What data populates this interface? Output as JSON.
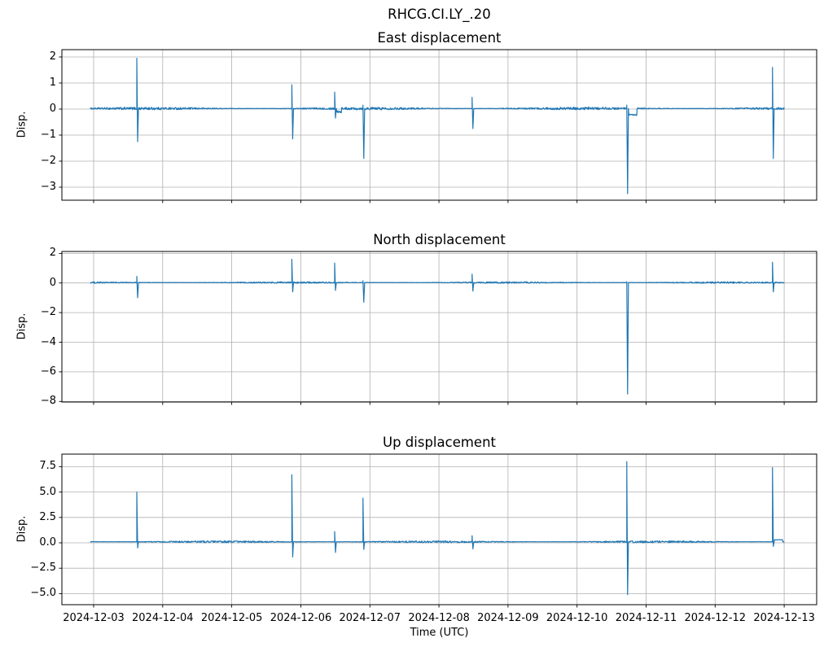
{
  "figure": {
    "suptitle": "RHCG.CI.LY_.20",
    "background": "#ffffff",
    "line_color": "#1f77b4",
    "grid_color": "#b0b0b0",
    "spine_color": "#000000",
    "text_color": "#000000"
  },
  "x_axis": {
    "label": "Time (UTC)",
    "tick_labels": [
      "2024-12-03",
      "2024-12-04",
      "2024-12-05",
      "2024-12-06",
      "2024-12-07",
      "2024-12-08",
      "2024-12-09",
      "2024-12-10",
      "2024-12-11",
      "2024-12-12",
      "2024-12-13"
    ],
    "tick_day_offsets": [
      0,
      1,
      2,
      3,
      4,
      5,
      6,
      7,
      8,
      9,
      10
    ],
    "xlim_days": [
      -0.46,
      10.47
    ],
    "data_start_day": -0.05,
    "data_end_day": 10.0
  },
  "chart_data": [
    {
      "type": "line",
      "title": "East displacement",
      "ylabel": "Disp.",
      "grid": true,
      "legend": "none",
      "ylim": [
        -3.5,
        2.28
      ],
      "ytick_values": [
        2,
        1,
        0,
        -1,
        -2,
        -3
      ],
      "ytick_labels": [
        "2",
        "1",
        "0",
        "−1",
        "−2",
        "−3"
      ],
      "baseline": 0.02,
      "noise_amp": 0.05,
      "spikes": [
        {
          "time": "2024-12-03 15:00",
          "t": 0.625,
          "up": 1.95,
          "down": -1.25
        },
        {
          "time": "2024-12-05 20:50",
          "t": 2.87,
          "up": 0.93,
          "down": -1.15
        },
        {
          "time": "2024-12-06 11:45",
          "t": 3.49,
          "up": 0.65,
          "down": -0.35,
          "after_value": -0.12,
          "after_days": 0.1
        },
        {
          "time": "2024-12-06 21:35",
          "t": 3.9,
          "up": 0.15,
          "down": -1.9
        },
        {
          "time": "2024-12-08 11:30",
          "t": 5.48,
          "up": 0.45,
          "down": -0.75
        },
        {
          "time": "2024-12-10 17:20",
          "t": 7.72,
          "up": 0.15,
          "down": -3.25,
          "after_value": -0.25,
          "after_days": 0.15
        },
        {
          "time": "2024-12-12 19:55",
          "t": 9.83,
          "up": 1.6,
          "down": -1.9
        }
      ]
    },
    {
      "type": "line",
      "title": "North displacement",
      "ylabel": "Disp.",
      "grid": true,
      "legend": "none",
      "ylim": [
        -8.04,
        2.13
      ],
      "ytick_values": [
        2,
        0,
        -2,
        -4,
        -6,
        -8
      ],
      "ytick_labels": [
        "2",
        "0",
        "−2",
        "−4",
        "−6",
        "−8"
      ],
      "baseline": 0.03,
      "noise_amp": 0.055,
      "spikes": [
        {
          "time": "2024-12-03 15:00",
          "t": 0.625,
          "up": 0.45,
          "down": -1.0
        },
        {
          "time": "2024-12-05 20:50",
          "t": 2.87,
          "up": 1.6,
          "down": -0.6
        },
        {
          "time": "2024-12-06 11:45",
          "t": 3.49,
          "up": 1.35,
          "down": -0.5
        },
        {
          "time": "2024-12-06 21:35",
          "t": 3.9,
          "up": 0.15,
          "down": -1.3
        },
        {
          "time": "2024-12-08 11:30",
          "t": 5.48,
          "up": 0.6,
          "down": -0.55
        },
        {
          "time": "2024-12-10 17:20",
          "t": 7.72,
          "up": 0.1,
          "down": -7.5
        },
        {
          "time": "2024-12-12 19:55",
          "t": 9.83,
          "up": 1.4,
          "down": -0.6
        }
      ]
    },
    {
      "type": "line",
      "title": "Up displacement",
      "ylabel": "Disp.",
      "grid": true,
      "legend": "none",
      "ylim": [
        -6.09,
        8.73
      ],
      "ytick_values": [
        7.5,
        5.0,
        2.5,
        0.0,
        -2.5,
        -5.0
      ],
      "ytick_labels": [
        "7.5",
        "5.0",
        "2.5",
        "0.0",
        "−2.5",
        "−5.0"
      ],
      "baseline": 0.1,
      "noise_amp": 0.1,
      "spikes": [
        {
          "time": "2024-12-03 15:00",
          "t": 0.625,
          "up": 5.0,
          "down": -0.5
        },
        {
          "time": "2024-12-05 20:50",
          "t": 2.87,
          "up": 6.7,
          "down": -1.4
        },
        {
          "time": "2024-12-06 11:45",
          "t": 3.49,
          "up": 1.1,
          "down": -0.95
        },
        {
          "time": "2024-12-06 21:35",
          "t": 3.9,
          "up": 4.4,
          "down": -0.65
        },
        {
          "time": "2024-12-08 11:30",
          "t": 5.48,
          "up": 0.7,
          "down": -0.6
        },
        {
          "time": "2024-12-10 17:20",
          "t": 7.72,
          "up": 8.0,
          "down": -5.1
        },
        {
          "time": "2024-12-12 19:55",
          "t": 9.83,
          "up": 7.4,
          "down": -0.35,
          "after_value": 0.2,
          "after_days": 0.15
        }
      ]
    }
  ]
}
